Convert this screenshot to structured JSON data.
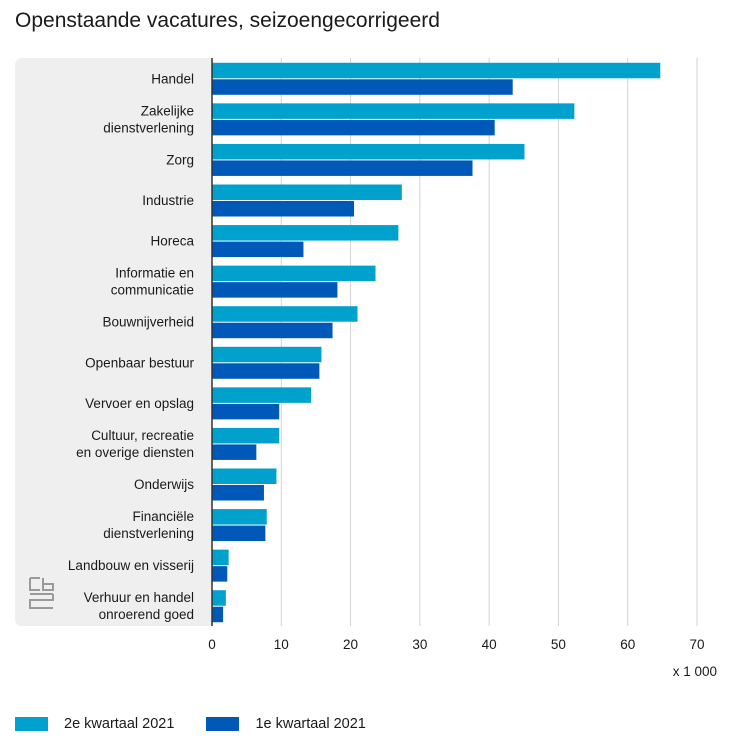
{
  "chart_data": {
    "type": "bar",
    "orientation": "horizontal",
    "title": "Openstaande vacatures, seizoengecorrigeerd",
    "unit": "x 1 000",
    "categories": [
      [
        "Handel"
      ],
      [
        "Zakelijke",
        "dienstverlening"
      ],
      [
        "Zorg"
      ],
      [
        "Industrie"
      ],
      [
        "Horeca"
      ],
      [
        "Informatie en",
        "communicatie"
      ],
      [
        "Bouwnijverheid"
      ],
      [
        "Openbaar bestuur"
      ],
      [
        "Vervoer en opslag"
      ],
      [
        "Cultuur, recreatie",
        "en overige diensten"
      ],
      [
        "Onderwijs"
      ],
      [
        "Financiële",
        "dienstverlening"
      ],
      [
        "Landbouw en visserij"
      ],
      [
        "Verhuur en handel",
        "onroerend goed"
      ]
    ],
    "series": [
      {
        "name": "2e kwartaal 2021",
        "color": "#00a1cd",
        "values": [
          64.7,
          52.3,
          45.1,
          27.4,
          26.9,
          23.6,
          21.0,
          15.8,
          14.3,
          9.7,
          9.3,
          7.9,
          2.4,
          2.0
        ]
      },
      {
        "name": "1e kwartaal 2021",
        "color": "#0058b8",
        "values": [
          43.4,
          40.8,
          37.6,
          20.5,
          13.2,
          18.1,
          17.4,
          15.5,
          9.7,
          6.4,
          7.5,
          7.7,
          2.2,
          1.6
        ]
      }
    ],
    "xlim": [
      0,
      70
    ],
    "xticks": [
      "0",
      "10",
      "20",
      "30",
      "40",
      "50",
      "60",
      "70"
    ],
    "grid": true,
    "legend_position": "bottom-left"
  }
}
